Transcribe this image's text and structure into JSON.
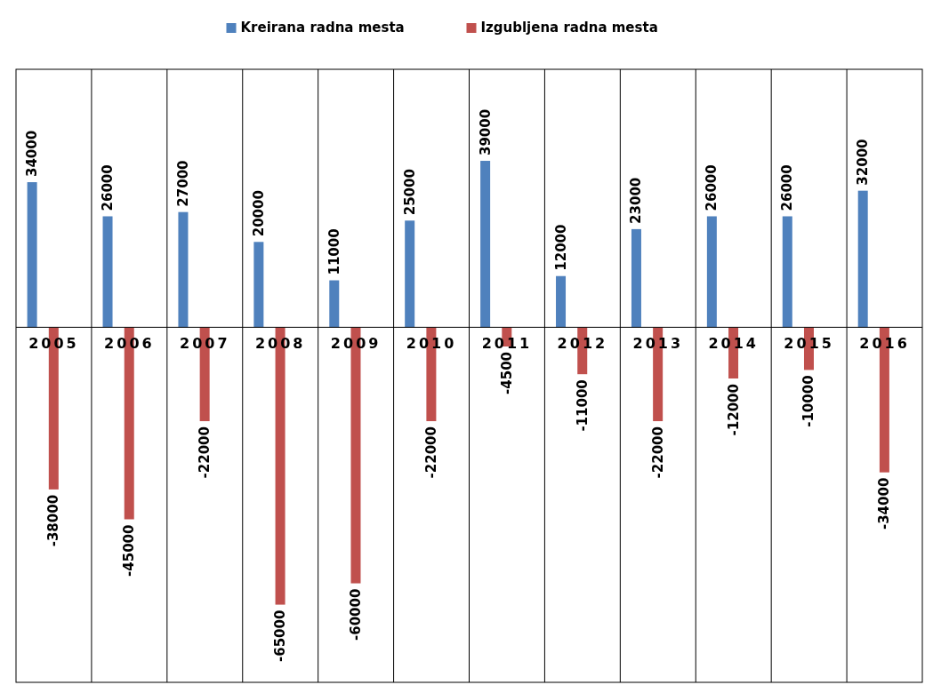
{
  "chart_data": {
    "type": "bar",
    "categories": [
      "2005",
      "2006",
      "2007",
      "2008",
      "2009",
      "2010",
      "2011",
      "2012",
      "2013",
      "2014",
      "2015",
      "2016"
    ],
    "series": [
      {
        "name": "Kreirana radna mesta",
        "color": "#4f81bd",
        "values": [
          34000,
          26000,
          27000,
          20000,
          11000,
          25000,
          39000,
          12000,
          23000,
          26000,
          26000,
          32000
        ]
      },
      {
        "name": "Izgubljena radna mesta",
        "color": "#c0504d",
        "values": [
          -38000,
          -45000,
          -22000,
          -65000,
          -60000,
          -22000,
          -4500,
          -11000,
          -22000,
          -12000,
          -10000,
          -34000
        ]
      }
    ],
    "data_labels": true,
    "grid": "x",
    "legend": "top"
  }
}
